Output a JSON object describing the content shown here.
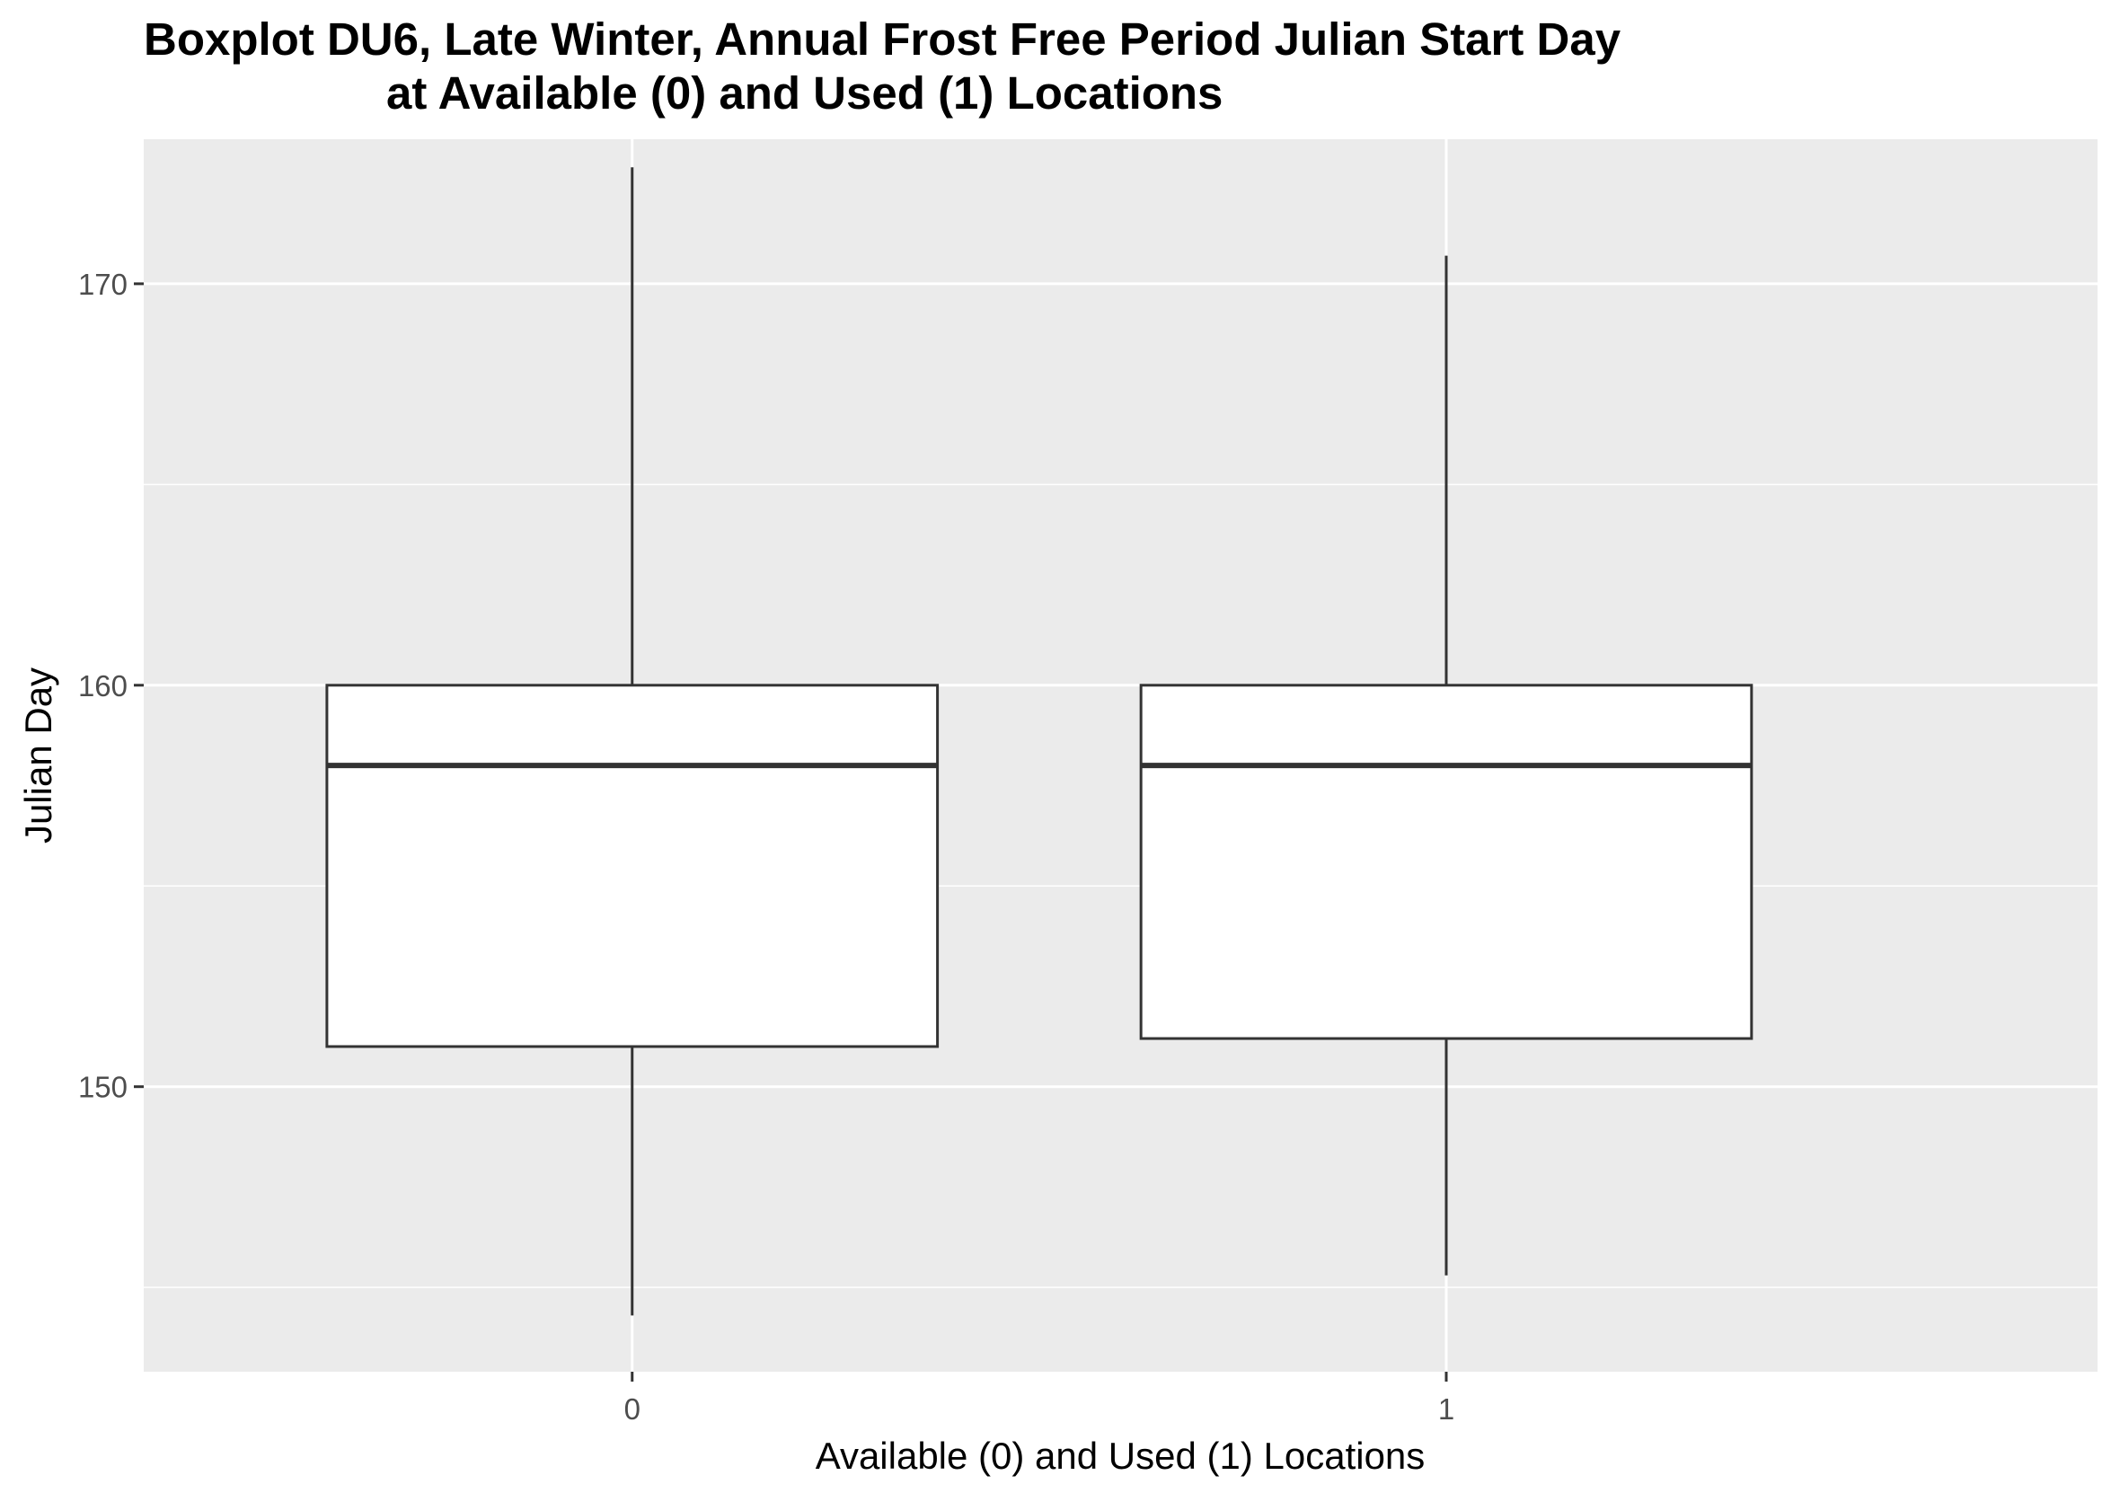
{
  "chart_data": {
    "type": "boxplot",
    "title_line1": "Boxplot DU6, Late Winter, Annual Frost Free Period Julian Start Day",
    "title_line2": "at Available (0) and Used (1) Locations",
    "xlabel": "Available (0) and Used (1) Locations",
    "ylabel": "Julian Day",
    "categories": [
      "0",
      "1"
    ],
    "ylim": [
      142.9,
      173.6
    ],
    "yticks": [
      150,
      160,
      170
    ],
    "grid": true,
    "boxes": [
      {
        "category": "0",
        "whisker_low": 144.3,
        "q1": 151.0,
        "median": 158.0,
        "q3": 160.0,
        "whisker_high": 172.9
      },
      {
        "category": "1",
        "whisker_low": 145.3,
        "q1": 151.2,
        "median": 158.0,
        "q3": 160.0,
        "whisker_high": 170.7
      }
    ],
    "colors": {
      "panel": "#ebebeb",
      "grid": "#ffffff",
      "box_fill": "#ffffff",
      "box_line": "#333333",
      "tick_text": "#4d4d4d"
    }
  }
}
